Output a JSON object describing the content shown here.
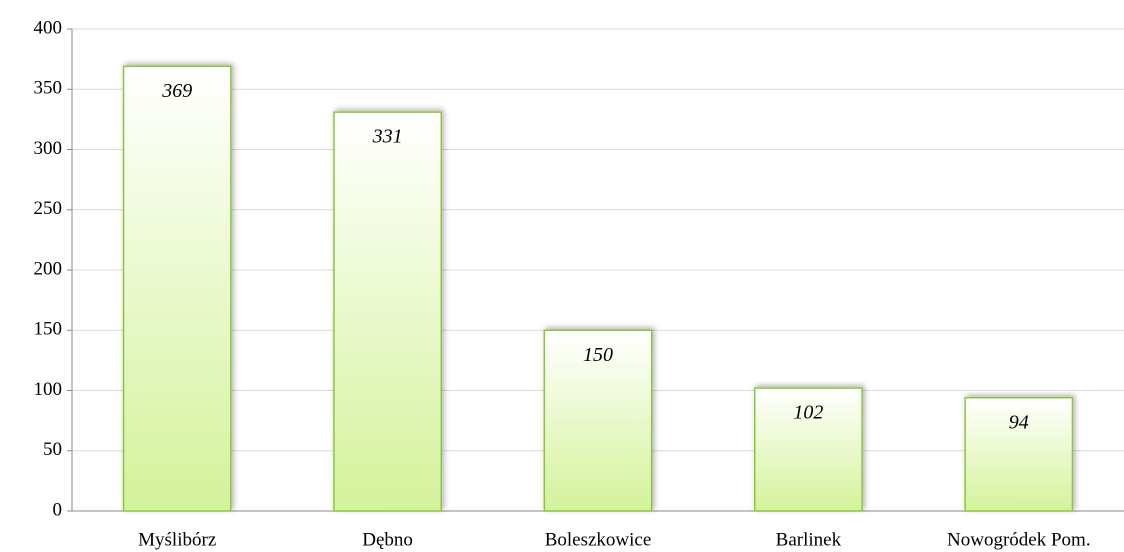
{
  "chart_data": {
    "type": "bar",
    "categories": [
      "Myślibórz",
      "Dębno",
      "Boleszkowice",
      "Barlinek",
      "Nowogródek Pom."
    ],
    "values": [
      369,
      331,
      150,
      102,
      94
    ],
    "color": "#dff7b0",
    "ylim": [
      0,
      400
    ],
    "yticks": [
      0,
      50,
      100,
      150,
      200,
      250,
      300,
      350,
      400
    ],
    "grid": true
  }
}
